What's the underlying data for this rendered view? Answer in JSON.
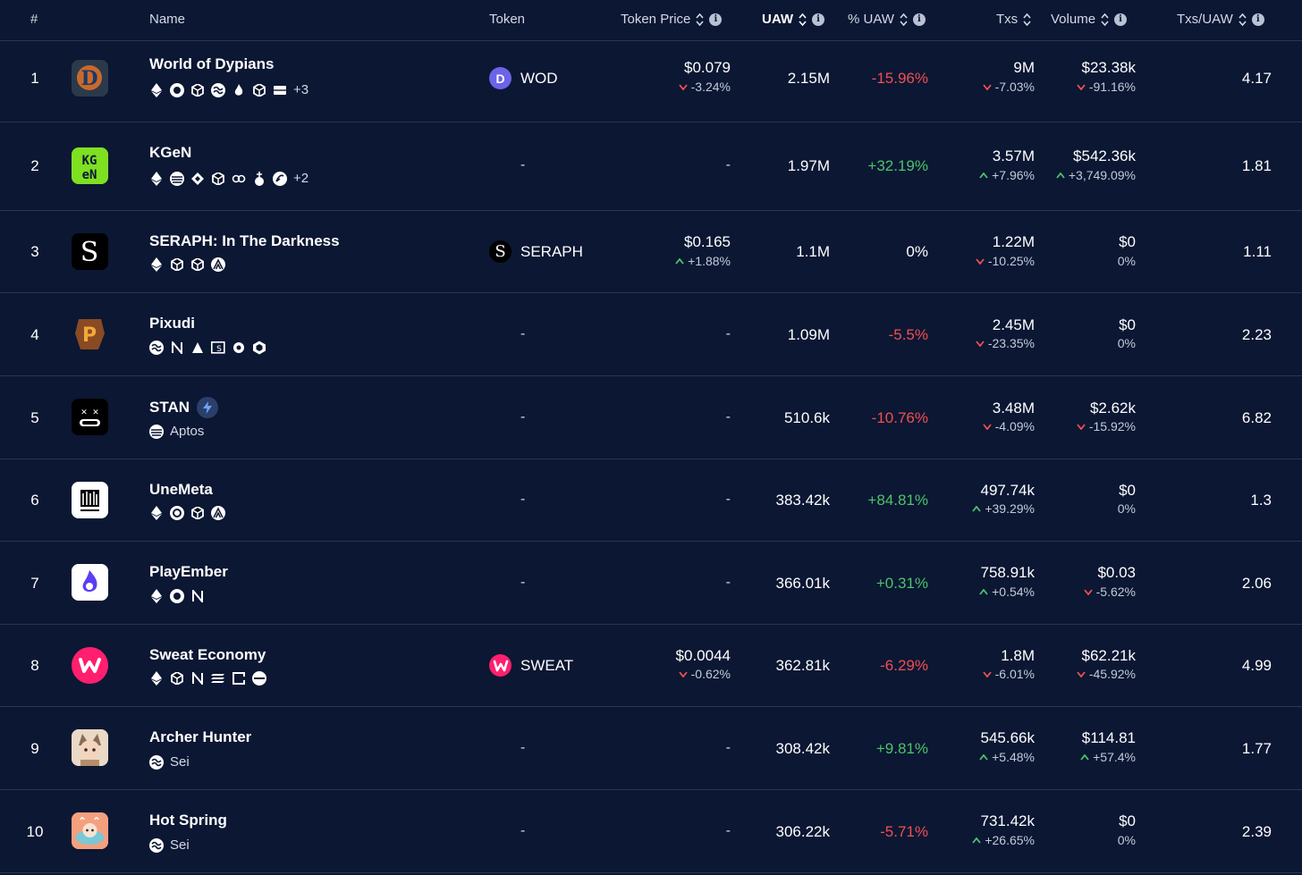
{
  "columns": {
    "rank": "#",
    "name": "Name",
    "token": "Token",
    "token_price": "Token Price",
    "uaw": "UAW",
    "pct_uaw": "% UAW",
    "txs": "Txs",
    "volume": "Volume",
    "txs_uaw": "Txs/UAW"
  },
  "rows": [
    {
      "rank": "1",
      "name": "World of Dypians",
      "chains_extra": "+3",
      "token": "WOD",
      "token_color": "#6c63e8",
      "token_glyph": "D",
      "price": "$0.079",
      "price_change": "-3.24%",
      "price_dir": "down",
      "uaw": "2.15M",
      "pct_uaw": "-15.96%",
      "pct_dir": "neg",
      "txs": "9M",
      "txs_change": "-7.03%",
      "txs_dir": "down",
      "volume": "$23.38k",
      "volume_change": "-91.16%",
      "volume_dir": "down",
      "txs_uaw": "4.17"
    },
    {
      "rank": "2",
      "name": "KGeN",
      "chains_extra": "+2",
      "token": "-",
      "price": "-",
      "uaw": "1.97M",
      "pct_uaw": "+32.19%",
      "pct_dir": "pos",
      "txs": "3.57M",
      "txs_change": "+7.96%",
      "txs_dir": "up",
      "volume": "$542.36k",
      "volume_change": "+3,749.09%",
      "volume_dir": "up",
      "txs_uaw": "1.81"
    },
    {
      "rank": "3",
      "name": "SERAPH: In The Darkness",
      "chains_extra": "",
      "token": "SERAPH",
      "token_color": "#000000",
      "token_glyph": "S",
      "price": "$0.165",
      "price_change": "+1.88%",
      "price_dir": "up",
      "uaw": "1.1M",
      "pct_uaw": "0%",
      "pct_dir": "neutral",
      "txs": "1.22M",
      "txs_change": "-10.25%",
      "txs_dir": "down",
      "volume": "$0",
      "volume_change": "0%",
      "volume_dir": "none",
      "txs_uaw": "1.11"
    },
    {
      "rank": "4",
      "name": "Pixudi",
      "chains_extra": "",
      "token": "-",
      "price": "-",
      "uaw": "1.09M",
      "pct_uaw": "-5.5%",
      "pct_dir": "neg",
      "txs": "2.45M",
      "txs_change": "-23.35%",
      "txs_dir": "down",
      "volume": "$0",
      "volume_change": "0%",
      "volume_dir": "none",
      "txs_uaw": "2.23"
    },
    {
      "rank": "5",
      "name": "STAN",
      "chains_extra": "Aptos",
      "token": "-",
      "price": "-",
      "uaw": "510.6k",
      "pct_uaw": "-10.76%",
      "pct_dir": "neg",
      "txs": "3.48M",
      "txs_change": "-4.09%",
      "txs_dir": "down",
      "volume": "$2.62k",
      "volume_change": "-15.92%",
      "volume_dir": "down",
      "txs_uaw": "6.82"
    },
    {
      "rank": "6",
      "name": "UneMeta",
      "chains_extra": "",
      "token": "-",
      "price": "-",
      "uaw": "383.42k",
      "pct_uaw": "+84.81%",
      "pct_dir": "pos",
      "txs": "497.74k",
      "txs_change": "+39.29%",
      "txs_dir": "up",
      "volume": "$0",
      "volume_change": "0%",
      "volume_dir": "none",
      "txs_uaw": "1.3"
    },
    {
      "rank": "7",
      "name": "PlayEmber",
      "chains_extra": "",
      "token": "-",
      "price": "-",
      "uaw": "366.01k",
      "pct_uaw": "+0.31%",
      "pct_dir": "pos",
      "txs": "758.91k",
      "txs_change": "+0.54%",
      "txs_dir": "up",
      "volume": "$0.03",
      "volume_change": "-5.62%",
      "volume_dir": "down",
      "txs_uaw": "2.06"
    },
    {
      "rank": "8",
      "name": "Sweat Economy",
      "chains_extra": "",
      "token": "SWEAT",
      "token_color": "#ff1f6e",
      "token_glyph": "W",
      "price": "$0.0044",
      "price_change": "-0.62%",
      "price_dir": "down",
      "uaw": "362.81k",
      "pct_uaw": "-6.29%",
      "pct_dir": "neg",
      "txs": "1.8M",
      "txs_change": "-6.01%",
      "txs_dir": "down",
      "volume": "$62.21k",
      "volume_change": "-45.92%",
      "volume_dir": "down",
      "txs_uaw": "4.99"
    },
    {
      "rank": "9",
      "name": "Archer Hunter",
      "chains_extra": "Sei",
      "token": "-",
      "price": "-",
      "uaw": "308.42k",
      "pct_uaw": "+9.81%",
      "pct_dir": "pos",
      "txs": "545.66k",
      "txs_change": "+5.48%",
      "txs_dir": "up",
      "volume": "$114.81",
      "volume_change": "+57.4%",
      "volume_dir": "up",
      "txs_uaw": "1.77"
    },
    {
      "rank": "10",
      "name": "Hot Spring",
      "chains_extra": "Sei",
      "token": "-",
      "price": "-",
      "uaw": "306.22k",
      "pct_uaw": "-5.71%",
      "pct_dir": "neg",
      "txs": "731.42k",
      "txs_change": "+26.65%",
      "txs_dir": "up",
      "volume": "$0",
      "volume_change": "0%",
      "volume_dir": "none",
      "txs_uaw": "2.39"
    }
  ],
  "colors": {
    "background": "#0b1733",
    "positive": "#4ec26a",
    "negative": "#f04f53",
    "divider": "#27365a"
  }
}
